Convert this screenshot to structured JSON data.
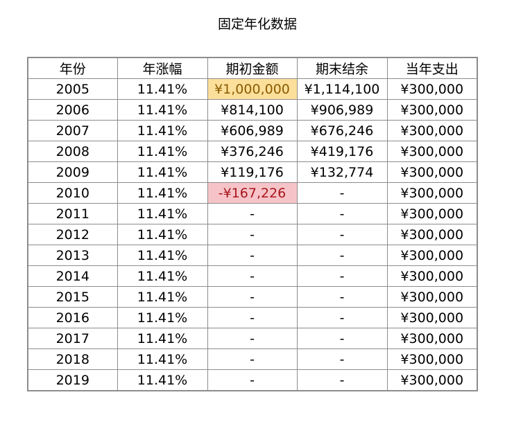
{
  "title": "固定年化数据",
  "headers": [
    "年份",
    "年涨幅",
    "期初金额",
    "期末结余",
    "当年支出"
  ],
  "colors": {
    "highlight_yellow_bg": "#fcdf9a",
    "highlight_yellow_text": "#8a5a00",
    "highlight_red_bg": "#f6c4c8",
    "highlight_red_text": "#a8151c",
    "border": "#8c8c8c"
  },
  "rows": [
    {
      "year": "2005",
      "rate": "11.41%",
      "start": "¥1,000,000",
      "end": "¥1,114,100",
      "spend": "¥300,000",
      "start_style": "yellow"
    },
    {
      "year": "2006",
      "rate": "11.41%",
      "start": "¥814,100",
      "end": "¥906,989",
      "spend": "¥300,000",
      "start_style": ""
    },
    {
      "year": "2007",
      "rate": "11.41%",
      "start": "¥606,989",
      "end": "¥676,246",
      "spend": "¥300,000",
      "start_style": ""
    },
    {
      "year": "2008",
      "rate": "11.41%",
      "start": "¥376,246",
      "end": "¥419,176",
      "spend": "¥300,000",
      "start_style": ""
    },
    {
      "year": "2009",
      "rate": "11.41%",
      "start": "¥119,176",
      "end": "¥132,774",
      "spend": "¥300,000",
      "start_style": ""
    },
    {
      "year": "2010",
      "rate": "11.41%",
      "start": "-¥167,226",
      "end": "-",
      "spend": "¥300,000",
      "start_style": "red"
    },
    {
      "year": "2011",
      "rate": "11.41%",
      "start": "-",
      "end": "-",
      "spend": "¥300,000",
      "start_style": ""
    },
    {
      "year": "2012",
      "rate": "11.41%",
      "start": "-",
      "end": "-",
      "spend": "¥300,000",
      "start_style": ""
    },
    {
      "year": "2013",
      "rate": "11.41%",
      "start": "-",
      "end": "-",
      "spend": "¥300,000",
      "start_style": ""
    },
    {
      "year": "2014",
      "rate": "11.41%",
      "start": "-",
      "end": "-",
      "spend": "¥300,000",
      "start_style": ""
    },
    {
      "year": "2015",
      "rate": "11.41%",
      "start": "-",
      "end": "-",
      "spend": "¥300,000",
      "start_style": ""
    },
    {
      "year": "2016",
      "rate": "11.41%",
      "start": "-",
      "end": "-",
      "spend": "¥300,000",
      "start_style": ""
    },
    {
      "year": "2017",
      "rate": "11.41%",
      "start": "-",
      "end": "-",
      "spend": "¥300,000",
      "start_style": ""
    },
    {
      "year": "2018",
      "rate": "11.41%",
      "start": "-",
      "end": "-",
      "spend": "¥300,000",
      "start_style": ""
    },
    {
      "year": "2019",
      "rate": "11.41%",
      "start": "-",
      "end": "-",
      "spend": "¥300,000",
      "start_style": ""
    }
  ]
}
